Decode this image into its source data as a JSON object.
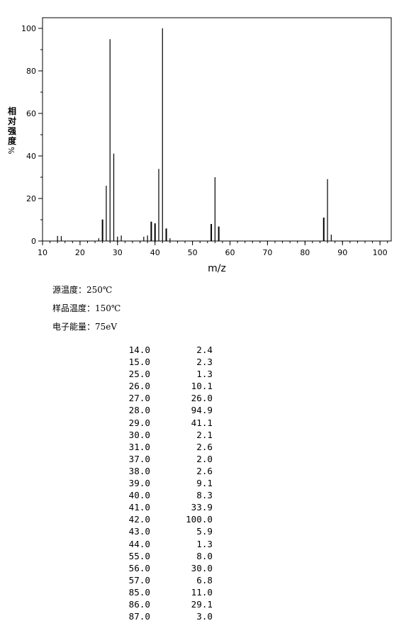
{
  "chart_data": {
    "type": "bar",
    "xlabel": "m/z",
    "ylabel": "相对强度",
    "ylabel_unit": "%",
    "xlim": [
      10,
      103
    ],
    "ylim": [
      0,
      105
    ],
    "xticks": [
      10,
      20,
      30,
      40,
      50,
      60,
      70,
      80,
      90,
      100
    ],
    "yticks": [
      0,
      20,
      40,
      60,
      80,
      100
    ],
    "peaks": [
      {
        "mz": 14.0,
        "intensity": 2.4
      },
      {
        "mz": 15.0,
        "intensity": 2.3
      },
      {
        "mz": 25.0,
        "intensity": 1.3
      },
      {
        "mz": 26.0,
        "intensity": 10.1
      },
      {
        "mz": 27.0,
        "intensity": 26.0
      },
      {
        "mz": 28.0,
        "intensity": 94.9
      },
      {
        "mz": 29.0,
        "intensity": 41.1
      },
      {
        "mz": 30.0,
        "intensity": 2.1
      },
      {
        "mz": 31.0,
        "intensity": 2.6
      },
      {
        "mz": 37.0,
        "intensity": 2.0
      },
      {
        "mz": 38.0,
        "intensity": 2.6
      },
      {
        "mz": 39.0,
        "intensity": 9.1
      },
      {
        "mz": 40.0,
        "intensity": 8.3
      },
      {
        "mz": 41.0,
        "intensity": 33.9
      },
      {
        "mz": 42.0,
        "intensity": 100.0
      },
      {
        "mz": 43.0,
        "intensity": 5.9
      },
      {
        "mz": 44.0,
        "intensity": 1.3
      },
      {
        "mz": 55.0,
        "intensity": 8.0
      },
      {
        "mz": 56.0,
        "intensity": 30.0
      },
      {
        "mz": 57.0,
        "intensity": 6.8
      },
      {
        "mz": 85.0,
        "intensity": 11.0
      },
      {
        "mz": 86.0,
        "intensity": 29.1
      },
      {
        "mz": 87.0,
        "intensity": 3.0
      }
    ]
  },
  "conditions": {
    "source_temp": "源温度：250℃",
    "sample_temp": "样品温度：150℃",
    "electron_energy": "电子能量：75eV"
  },
  "peak_table": [
    {
      "mz": "14.0",
      "ab": "2.4"
    },
    {
      "mz": "15.0",
      "ab": "2.3"
    },
    {
      "mz": "25.0",
      "ab": "1.3"
    },
    {
      "mz": "26.0",
      "ab": "10.1"
    },
    {
      "mz": "27.0",
      "ab": "26.0"
    },
    {
      "mz": "28.0",
      "ab": "94.9"
    },
    {
      "mz": "29.0",
      "ab": "41.1"
    },
    {
      "mz": "30.0",
      "ab": "2.1"
    },
    {
      "mz": "31.0",
      "ab": "2.6"
    },
    {
      "mz": "37.0",
      "ab": "2.0"
    },
    {
      "mz": "38.0",
      "ab": "2.6"
    },
    {
      "mz": "39.0",
      "ab": "9.1"
    },
    {
      "mz": "40.0",
      "ab": "8.3"
    },
    {
      "mz": "41.0",
      "ab": "33.9"
    },
    {
      "mz": "42.0",
      "ab": "100.0"
    },
    {
      "mz": "43.0",
      "ab": "5.9"
    },
    {
      "mz": "44.0",
      "ab": "1.3"
    },
    {
      "mz": "55.0",
      "ab": "8.0"
    },
    {
      "mz": "56.0",
      "ab": "30.0"
    },
    {
      "mz": "57.0",
      "ab": "6.8"
    },
    {
      "mz": "85.0",
      "ab": "11.0"
    },
    {
      "mz": "86.0",
      "ab": "29.1"
    },
    {
      "mz": "87.0",
      "ab": "3.0"
    }
  ]
}
